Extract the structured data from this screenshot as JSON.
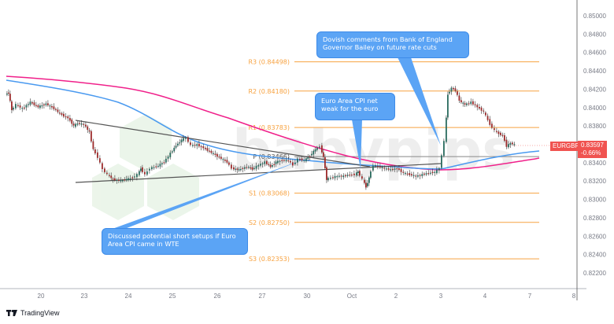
{
  "chart_data": {
    "type": "candlestick",
    "symbol": "EURGBP",
    "last_price": "0.83597",
    "change_pct": "-0.66%",
    "y_ticks": [
      "0.85000",
      "0.84800",
      "0.84600",
      "0.84400",
      "0.84200",
      "0.84000",
      "0.83800",
      "0.83600",
      "0.83400",
      "0.83200",
      "0.83000",
      "0.82800",
      "0.82600",
      "0.82400",
      "0.82200"
    ],
    "x_ticks": [
      "20",
      "23",
      "24",
      "25",
      "26",
      "27",
      "30",
      "Oct",
      "2",
      "3",
      "4",
      "7",
      "8"
    ],
    "ylim": [
      0.821,
      0.8515
    ],
    "pivot_levels": [
      {
        "name": "R3",
        "value": 0.84498,
        "label": "R3 (0.84498)"
      },
      {
        "name": "R2",
        "value": 0.8418,
        "label": "R2 (0.84180)"
      },
      {
        "name": "R1",
        "value": 0.83783,
        "label": "R1 (0.83783)"
      },
      {
        "name": "P",
        "value": 0.83466,
        "label": "P (0.83466)"
      },
      {
        "name": "S1",
        "value": 0.83068,
        "label": "S1 (0.83068)"
      },
      {
        "name": "S2",
        "value": 0.8275,
        "label": "S2 (0.82750)"
      },
      {
        "name": "S3",
        "value": 0.82353,
        "label": "S3 (0.82353)"
      }
    ],
    "series": [
      {
        "name": "Moving average (pink, slow)",
        "color": "#f0208a"
      },
      {
        "name": "Moving average (blue, fast)",
        "color": "#4a9af0"
      },
      {
        "name": "Triangle trendlines",
        "color": "#555555"
      }
    ],
    "annotations": [
      {
        "id": "boe",
        "text": "Dovish comments from Bank of England Governor Bailey on future rate cuts"
      },
      {
        "id": "cpi",
        "text": "Euro Area CPI net weak for the euro"
      },
      {
        "id": "short",
        "text": "Discussed potential short setups if Euro Area CPI came in WTE"
      }
    ],
    "grid": false,
    "watermark": "babypips"
  },
  "brand": {
    "name": "TradingView"
  }
}
